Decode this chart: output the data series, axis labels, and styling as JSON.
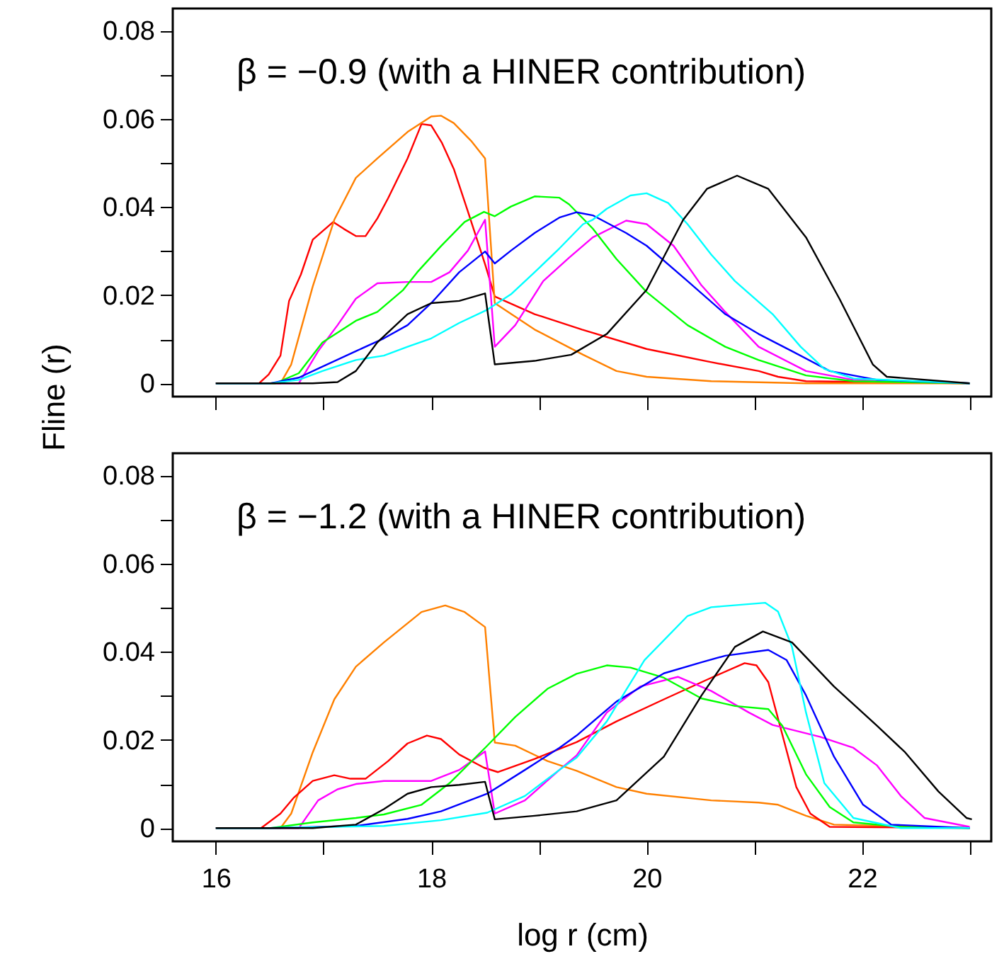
{
  "chart_data": [
    {
      "type": "line",
      "annotations": [
        "β = −0.9  (with a HINER contribution)"
      ],
      "ylabel": "Fline (r)",
      "xlim": [
        15.6,
        23.2
      ],
      "ylim": [
        -0.003,
        0.085
      ],
      "xticks": [
        16,
        {
          "value": 17,
          "label": null
        },
        18,
        {
          "value": 19,
          "label": null
        },
        20,
        {
          "value": 21,
          "label": null
        },
        22,
        {
          "value": 23,
          "label": null
        }
      ],
      "yticks": [
        0,
        {
          "value": 0.01,
          "label": null
        },
        0.02,
        {
          "value": 0.03,
          "label": null
        },
        0.04,
        {
          "value": 0.05,
          "label": null
        },
        0.06,
        {
          "value": 0.07,
          "label": null
        },
        0.08
      ],
      "tick_labels": "y",
      "grid": false,
      "line_style": "solid",
      "series": [
        {
          "color": "#ff0000",
          "x": [
            16.0,
            16.4,
            16.49,
            16.6,
            16.68,
            16.79,
            16.9,
            17.09,
            17.19,
            17.3,
            17.39,
            17.5,
            17.6,
            17.78,
            17.91,
            18.0,
            18.1,
            18.21,
            18.34,
            18.5,
            18.59,
            18.96,
            19.4,
            20.0,
            20.6,
            21.04,
            21.22,
            21.48,
            23.0
          ],
          "values": [
            0,
            0,
            0.002,
            0.0063,
            0.0187,
            0.0247,
            0.0326,
            0.0366,
            0.035,
            0.0334,
            0.0334,
            0.0374,
            0.042,
            0.051,
            0.0588,
            0.0585,
            0.0545,
            0.0486,
            0.039,
            0.027,
            0.0197,
            0.0157,
            0.0122,
            0.0078,
            0.0048,
            0.0028,
            0.0015,
            0.0005,
            0
          ]
        },
        {
          "color": "#ff8000",
          "x": [
            16.0,
            16.6,
            16.7,
            16.9,
            17.1,
            17.3,
            17.5,
            17.78,
            18.0,
            18.09,
            18.21,
            18.37,
            18.5,
            18.59,
            18.96,
            19.41,
            19.72,
            20.0,
            20.6,
            21.48,
            23.0
          ],
          "values": [
            0,
            0,
            0.0043,
            0.022,
            0.0371,
            0.0466,
            0.051,
            0.057,
            0.0605,
            0.0607,
            0.059,
            0.055,
            0.051,
            0.0182,
            0.0122,
            0.0065,
            0.0028,
            0.0015,
            0.0005,
            0,
            0
          ]
        },
        {
          "color": "#ff00ff",
          "x": [
            16.0,
            16.77,
            16.95,
            17.13,
            17.3,
            17.5,
            17.78,
            18.0,
            18.17,
            18.34,
            18.5,
            18.59,
            18.78,
            19.04,
            19.28,
            19.5,
            19.81,
            20.0,
            20.25,
            20.51,
            20.73,
            21.04,
            21.48,
            21.92,
            23.0
          ],
          "values": [
            0,
            0,
            0.0073,
            0.0132,
            0.0192,
            0.0227,
            0.023,
            0.023,
            0.0252,
            0.0301,
            0.0371,
            0.0083,
            0.0132,
            0.0232,
            0.0285,
            0.0331,
            0.0369,
            0.0361,
            0.0312,
            0.0222,
            0.0162,
            0.0083,
            0.0028,
            0.0008,
            0
          ]
        },
        {
          "color": "#00ff00",
          "x": [
            16.0,
            16.55,
            16.77,
            16.99,
            17.3,
            17.5,
            17.74,
            17.87,
            18.09,
            18.31,
            18.49,
            18.59,
            18.74,
            18.96,
            19.19,
            19.28,
            19.5,
            19.72,
            20.0,
            20.38,
            20.73,
            21.04,
            21.48,
            21.92,
            23.0
          ],
          "values": [
            0,
            0,
            0.0023,
            0.0093,
            0.0142,
            0.0162,
            0.0212,
            0.0252,
            0.0311,
            0.0366,
            0.0389,
            0.0379,
            0.0401,
            0.0424,
            0.0421,
            0.0406,
            0.0351,
            0.0282,
            0.0207,
            0.0132,
            0.0083,
            0.0053,
            0.0018,
            0.0005,
            0
          ]
        },
        {
          "color": "#0000ff",
          "x": [
            16.0,
            16.5,
            16.77,
            16.99,
            17.3,
            17.56,
            17.78,
            18.0,
            18.26,
            18.5,
            18.59,
            18.74,
            18.96,
            19.19,
            19.35,
            19.5,
            19.81,
            20.0,
            20.38,
            20.73,
            21.04,
            21.35,
            21.7,
            22.14,
            23.0
          ],
          "values": [
            0,
            0,
            0.0013,
            0.0038,
            0.0073,
            0.0102,
            0.0132,
            0.0182,
            0.0252,
            0.0299,
            0.0272,
            0.0301,
            0.0341,
            0.0376,
            0.0388,
            0.0381,
            0.0341,
            0.0312,
            0.0232,
            0.0157,
            0.0112,
            0.0073,
            0.0028,
            0.0008,
            0
          ]
        },
        {
          "color": "#00ffff",
          "x": [
            16.0,
            16.5,
            16.77,
            16.99,
            17.3,
            17.56,
            17.78,
            18.0,
            18.26,
            18.52,
            18.74,
            18.96,
            19.19,
            19.41,
            19.5,
            19.63,
            19.85,
            20.0,
            20.2,
            20.38,
            20.6,
            20.82,
            21.17,
            21.43,
            21.65,
            21.92,
            23.0
          ],
          "values": [
            0,
            0,
            0.0008,
            0.0028,
            0.0053,
            0.0063,
            0.0083,
            0.0102,
            0.0137,
            0.0167,
            0.0202,
            0.0252,
            0.0306,
            0.0361,
            0.0371,
            0.0396,
            0.0426,
            0.0431,
            0.0409,
            0.0361,
            0.0292,
            0.0232,
            0.0157,
            0.0083,
            0.0033,
            0.0011,
            0
          ]
        },
        {
          "color": "#000000",
          "x": [
            16.0,
            16.9,
            17.13,
            17.3,
            17.5,
            17.78,
            18.0,
            18.26,
            18.5,
            18.59,
            18.96,
            19.3,
            19.63,
            20.0,
            20.34,
            20.56,
            20.84,
            21.13,
            21.48,
            21.79,
            22.1,
            22.23,
            23.0
          ],
          "values": [
            0,
            0,
            0.0003,
            0.0028,
            0.0093,
            0.0157,
            0.0182,
            0.0187,
            0.0204,
            0.0043,
            0.0051,
            0.0065,
            0.0112,
            0.0212,
            0.0371,
            0.0441,
            0.0471,
            0.0441,
            0.0331,
            0.0192,
            0.0043,
            0.0015,
            0
          ]
        }
      ]
    },
    {
      "type": "line",
      "annotations": [
        "β = −1.2  (with a HINER contribution)"
      ],
      "xlabel": "log r  (cm)",
      "xlim": [
        15.6,
        23.2
      ],
      "ylim": [
        -0.003,
        0.085
      ],
      "xticks": [
        16,
        {
          "value": 17,
          "label": null
        },
        18,
        {
          "value": 19,
          "label": null
        },
        20,
        {
          "value": 21,
          "label": null
        },
        22,
        {
          "value": 23,
          "label": null
        }
      ],
      "yticks": [
        0,
        {
          "value": 0.01,
          "label": null
        },
        0.02,
        {
          "value": 0.03,
          "label": null
        },
        0.04,
        {
          "value": 0.05,
          "label": null
        },
        0.06,
        {
          "value": 0.07,
          "label": null
        },
        0.08
      ],
      "grid": false,
      "line_style": "solid",
      "series": [
        {
          "color": "#ff8000",
          "x": [
            16.0,
            16.6,
            16.7,
            16.9,
            17.1,
            17.3,
            17.56,
            17.91,
            18.13,
            18.31,
            18.5,
            18.59,
            18.78,
            19.08,
            19.35,
            19.72,
            20.0,
            20.6,
            21.04,
            21.22,
            21.48,
            21.74,
            23.0
          ],
          "values": [
            0,
            0,
            0.0033,
            0.0172,
            0.0292,
            0.0366,
            0.0421,
            0.049,
            0.0505,
            0.049,
            0.0456,
            0.0194,
            0.0187,
            0.0152,
            0.013,
            0.0093,
            0.0078,
            0.0063,
            0.0058,
            0.0053,
            0.0028,
            0.0008,
            0
          ]
        },
        {
          "color": "#ff0000",
          "x": [
            16.0,
            16.42,
            16.6,
            16.72,
            16.9,
            17.1,
            17.25,
            17.39,
            17.6,
            17.78,
            17.96,
            18.09,
            18.26,
            18.49,
            18.62,
            18.96,
            19.35,
            19.72,
            20.16,
            20.6,
            20.91,
            21.02,
            21.13,
            21.26,
            21.39,
            21.52,
            21.7,
            23.0
          ],
          "values": [
            0,
            0,
            0.0033,
            0.0068,
            0.0107,
            0.012,
            0.0112,
            0.0112,
            0.0152,
            0.0192,
            0.021,
            0.0202,
            0.0167,
            0.0137,
            0.0127,
            0.0157,
            0.0195,
            0.0242,
            0.0292,
            0.0341,
            0.0374,
            0.0369,
            0.0331,
            0.0212,
            0.0093,
            0.0033,
            0.0003,
            0
          ]
        },
        {
          "color": "#ff00ff",
          "x": [
            16.0,
            16.77,
            16.95,
            17.13,
            17.3,
            17.56,
            18.0,
            18.26,
            18.5,
            18.59,
            18.87,
            19.19,
            19.35,
            19.63,
            19.94,
            20.29,
            20.6,
            20.95,
            21.17,
            21.61,
            21.92,
            22.14,
            22.36,
            22.58,
            23.0
          ],
          "values": [
            0,
            0,
            0.0063,
            0.0088,
            0.01,
            0.0107,
            0.0107,
            0.0132,
            0.0174,
            0.0033,
            0.0063,
            0.0132,
            0.0165,
            0.0262,
            0.0321,
            0.0343,
            0.0311,
            0.0262,
            0.0234,
            0.0207,
            0.0182,
            0.0142,
            0.0073,
            0.0023,
            0.0003
          ]
        },
        {
          "color": "#00ff00",
          "x": [
            16.0,
            16.5,
            16.9,
            17.3,
            17.56,
            17.91,
            18.17,
            18.5,
            18.78,
            19.08,
            19.35,
            19.63,
            19.85,
            20.16,
            20.51,
            20.82,
            21.13,
            21.26,
            21.48,
            21.7,
            21.92,
            22.36,
            23.0
          ],
          "values": [
            0,
            0,
            0.0013,
            0.0023,
            0.0031,
            0.0053,
            0.0102,
            0.0182,
            0.0252,
            0.0316,
            0.035,
            0.0369,
            0.0364,
            0.0341,
            0.0294,
            0.0277,
            0.027,
            0.0232,
            0.0122,
            0.0048,
            0.0013,
            0.0003,
            0
          ]
        },
        {
          "color": "#0000ff",
          "x": [
            16.0,
            16.5,
            17.3,
            17.78,
            18.09,
            18.52,
            18.87,
            19.19,
            19.35,
            19.72,
            20.16,
            20.51,
            20.73,
            21.13,
            21.3,
            21.48,
            21.74,
            22.01,
            22.27,
            23.0
          ],
          "values": [
            0,
            0,
            0.0005,
            0.0021,
            0.0038,
            0.0078,
            0.0132,
            0.0182,
            0.021,
            0.0287,
            0.0351,
            0.0376,
            0.0391,
            0.0404,
            0.0381,
            0.0301,
            0.0162,
            0.0053,
            0.0008,
            0
          ]
        },
        {
          "color": "#00ffff",
          "x": [
            16.0,
            16.5,
            17.56,
            18.09,
            18.52,
            18.87,
            19.19,
            19.35,
            19.63,
            19.98,
            20.38,
            20.6,
            21.1,
            21.22,
            21.35,
            21.48,
            21.65,
            21.92,
            22.36,
            23.0
          ],
          "values": [
            0,
            0,
            0.0005,
            0.0018,
            0.0035,
            0.0073,
            0.0132,
            0.016,
            0.0242,
            0.0381,
            0.0481,
            0.0501,
            0.0511,
            0.0491,
            0.0411,
            0.0262,
            0.0102,
            0.0023,
            0,
            0
          ]
        },
        {
          "color": "#000000",
          "x": [
            16.0,
            16.9,
            17.3,
            17.56,
            17.78,
            18.0,
            18.26,
            18.5,
            18.59,
            18.96,
            19.35,
            19.72,
            20.16,
            20.51,
            20.82,
            21.08,
            21.35,
            21.74,
            22.14,
            22.4,
            22.71,
            22.97,
            23.02
          ],
          "values": [
            0,
            0,
            0.0008,
            0.0043,
            0.0078,
            0.0093,
            0.0098,
            0.0105,
            0.002,
            0.0028,
            0.0038,
            0.0063,
            0.0162,
            0.0301,
            0.0411,
            0.0446,
            0.0421,
            0.0321,
            0.0232,
            0.0172,
            0.0083,
            0.0023,
            0.002
          ]
        }
      ]
    }
  ]
}
